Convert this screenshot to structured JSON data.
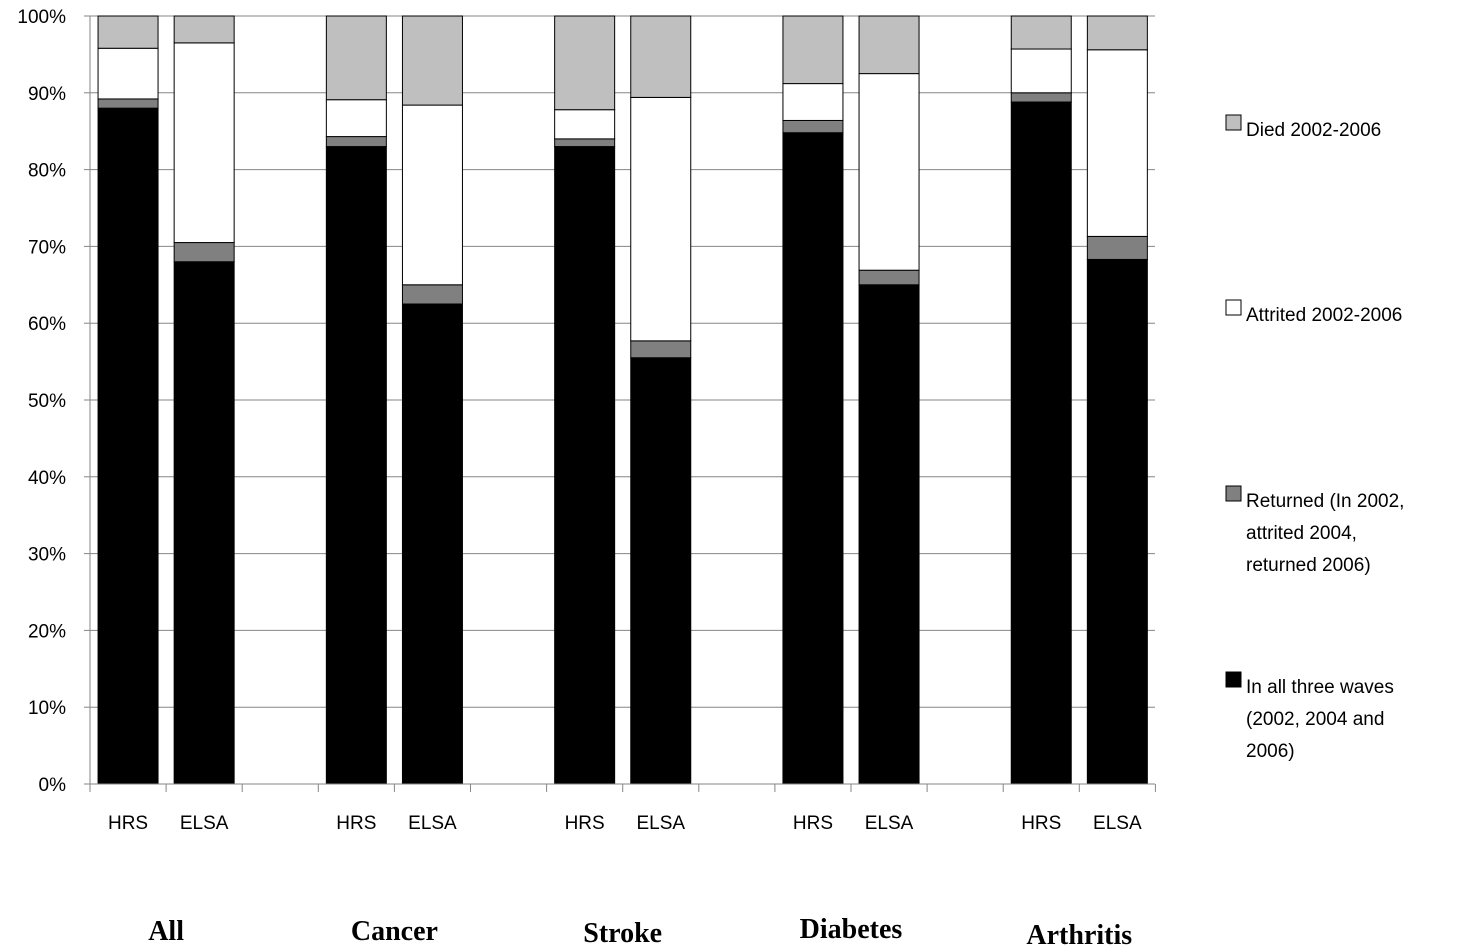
{
  "chart_data": {
    "type": "bar",
    "stacked": true,
    "ylim": [
      0,
      100
    ],
    "y_ticks": [
      "0%",
      "10%",
      "20%",
      "30%",
      "40%",
      "50%",
      "60%",
      "70%",
      "80%",
      "90%",
      "100%"
    ],
    "grid": true,
    "legend_position": "right",
    "groups": [
      {
        "label": "All",
        "bars": [
          {
            "label": "HRS",
            "values": [
              88.0,
              1.2,
              6.6,
              4.2
            ]
          },
          {
            "label": "ELSA",
            "values": [
              68.0,
              2.5,
              26.0,
              3.5
            ]
          }
        ]
      },
      {
        "label": "Cancer",
        "bars": [
          {
            "label": "HRS",
            "values": [
              83.0,
              1.3,
              4.8,
              10.9
            ]
          },
          {
            "label": "ELSA",
            "values": [
              62.5,
              2.5,
              23.4,
              11.6
            ]
          }
        ]
      },
      {
        "label": "Stroke",
        "bars": [
          {
            "label": "HRS",
            "values": [
              83.0,
              1.0,
              3.8,
              12.2
            ]
          },
          {
            "label": "ELSA",
            "values": [
              55.5,
              2.2,
              31.7,
              10.6
            ]
          }
        ]
      },
      {
        "label": "Diabetes",
        "bars": [
          {
            "label": "HRS",
            "values": [
              84.8,
              1.6,
              4.8,
              8.8
            ]
          },
          {
            "label": "ELSA",
            "values": [
              65.0,
              1.9,
              25.6,
              7.5
            ]
          }
        ]
      },
      {
        "label": "Arthritis",
        "bars": [
          {
            "label": "HRS",
            "values": [
              88.8,
              1.2,
              5.7,
              4.3
            ]
          },
          {
            "label": "ELSA",
            "values": [
              68.3,
              3.0,
              24.3,
              4.4
            ]
          }
        ]
      }
    ],
    "series": [
      {
        "name": "In all three waves (2002, 2004 and 2006)",
        "legend_lines": [
          "In all three waves",
          "(2002, 2004 and",
          "2006)"
        ],
        "color": "#000000"
      },
      {
        "name": "Returned (In 2002, attrited 2004, returned 2006)",
        "legend_lines": [
          "Returned (In 2002,",
          "attrited 2004,",
          "returned 2006)"
        ],
        "color": "#808080"
      },
      {
        "name": "Attrited 2002-2006",
        "legend_lines": [
          "Attrited 2002-2006"
        ],
        "color": "#ffffff"
      },
      {
        "name": "Died 2002-2006",
        "legend_lines": [
          "Died 2002-2006"
        ],
        "color": "#bfbfbf"
      }
    ]
  }
}
